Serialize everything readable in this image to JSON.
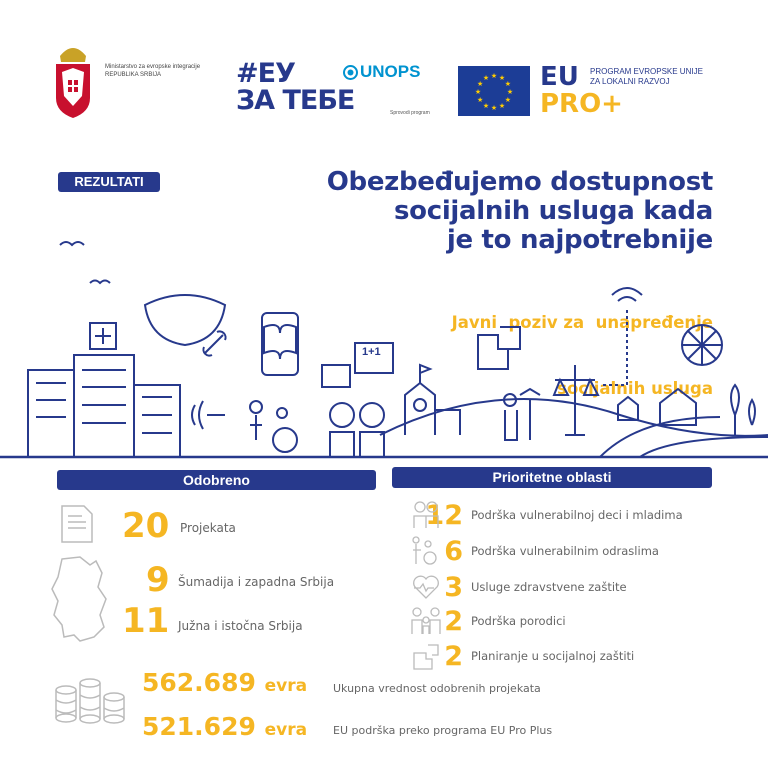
{
  "header": {
    "ministry_line1": "Ministarstvo za evropske integracije",
    "ministry_line2": "REPUBLIKA SRBIJA",
    "campaign_line1": "#ЕУ",
    "campaign_line2": "ЗА ТЕБЕ",
    "unops": "UNOPS",
    "implementer": "Sprovodi program",
    "eu": "EU",
    "pro": "PRO+",
    "program_line1": "PROGRAM EVROPSKE UNIJE",
    "program_line2": "ZA LOKALNI RAZVOJ"
  },
  "badge": "REZULTATI",
  "title": [
    "Obezbeđujemo dostupnost",
    "socijalnih usluga kada",
    "je to najpotrebnije"
  ],
  "subtitle": [
    "Javni  poziv za  unapređenje",
    "socijalnih usluga"
  ],
  "approved": {
    "heading": "Odobreno",
    "projects": {
      "value": "20",
      "label": "Projekata"
    },
    "regions": [
      {
        "value": "9",
        "label": "Šumadija i zapadna Srbija"
      },
      {
        "value": "11",
        "label": "Južna i istočna Srbija"
      }
    ],
    "amounts": [
      {
        "value": "562.689",
        "unit": "evra",
        "label": "Ukupna vrednost odobrenih projekata"
      },
      {
        "value": "521.629",
        "unit": "evra",
        "label": "EU podrška preko programa EU Pro Plus"
      }
    ]
  },
  "priorities": {
    "heading": "Prioritetne oblasti",
    "items": [
      {
        "value": "12",
        "label": "Podrška vulnerabilnoj deci i mladima",
        "icon": "children-icon"
      },
      {
        "value": "6",
        "label": "Podrška vulnerabilnim odraslima",
        "icon": "wheelchair-icon"
      },
      {
        "value": "3",
        "label": "Usluge zdravstvene zaštite",
        "icon": "heart-icon"
      },
      {
        "value": "2",
        "label": "Podrška porodici",
        "icon": "family-icon"
      },
      {
        "value": "2",
        "label": "Planiranje u socijalnoj zaštiti",
        "icon": "puzzle-icon"
      }
    ]
  },
  "illustration": {
    "speech_bubble": "1+1"
  },
  "colors": {
    "navy": "#27398c",
    "yellow": "#f5b623",
    "unops_blue": "#0093d0"
  }
}
